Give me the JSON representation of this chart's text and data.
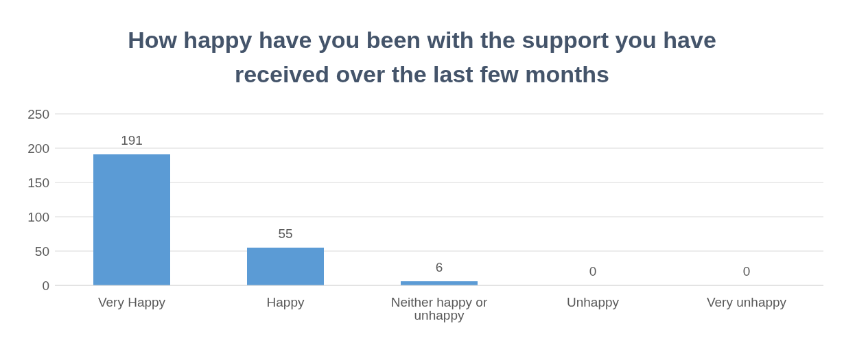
{
  "chart_data": {
    "type": "bar",
    "title": "How happy have you been with the support you have received over the last few months",
    "categories": [
      "Very Happy",
      "Happy",
      "Neither happy or unhappy",
      "Unhappy",
      "Very unhappy"
    ],
    "values": [
      191,
      55,
      6,
      0,
      0
    ],
    "color": "#5b9bd5",
    "ylim": [
      0,
      250
    ],
    "yticks": [
      0,
      50,
      100,
      150,
      200,
      250
    ],
    "grid": "y",
    "data_labels": true
  }
}
